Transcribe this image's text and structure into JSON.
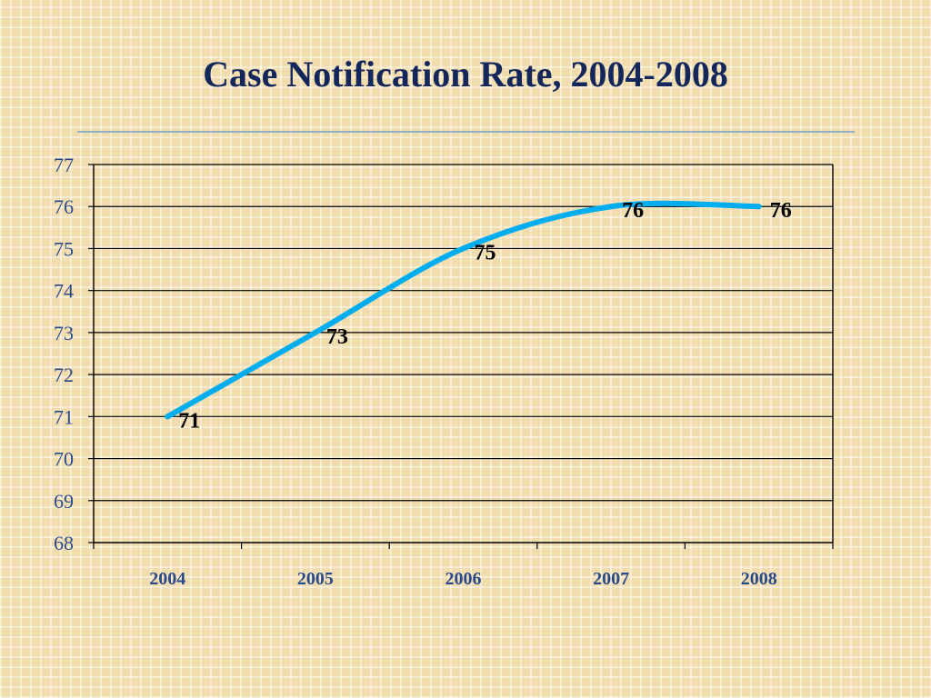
{
  "slide": {
    "title": "Case Notification Rate, 2004-2008"
  },
  "colors": {
    "background": "#f1dcae",
    "title": "#14275b",
    "axis_text": "#2b4a8a",
    "line": "#00aeef",
    "gridline": "#000000"
  },
  "chart_data": {
    "type": "line",
    "title": "",
    "xlabel": "",
    "ylabel": "",
    "categories": [
      "2004",
      "2005",
      "2006",
      "2007",
      "2008"
    ],
    "series": [
      {
        "values": [
          71,
          73,
          75,
          76,
          76
        ],
        "smooth": true
      }
    ],
    "data_labels": [
      "71",
      "73",
      "75",
      "76",
      "76"
    ],
    "y_ticks": [
      "68",
      "69",
      "70",
      "71",
      "72",
      "73",
      "74",
      "75",
      "76",
      "77"
    ],
    "ylim": [
      68,
      77
    ],
    "grid": true,
    "legend": "none"
  }
}
